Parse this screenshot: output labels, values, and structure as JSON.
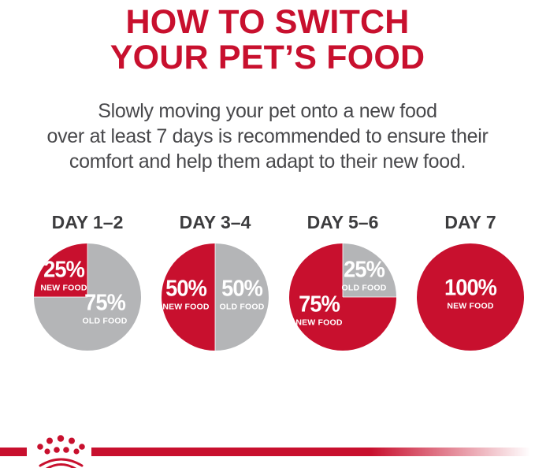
{
  "header": {
    "title_line1": "HOW TO SWITCH",
    "title_line2": "YOUR PET’S FOOD",
    "subtitle_lines": [
      "Slowly moving your pet onto a new food",
      "over at least 7 days is recommended to ensure their",
      "comfort and help them adapt to their new food."
    ]
  },
  "colors": {
    "brand_red": "#C8102E",
    "old_food_gray": "#B4B5B7",
    "heading_text": "#C8102E",
    "body_text": "#48484B",
    "day_label_text": "#3C3C3E",
    "pie_label_text": "#FFFFFF"
  },
  "chart_data": [
    {
      "type": "pie",
      "title": "DAY 1–2",
      "legend_position": "inside",
      "slices": [
        {
          "label": "NEW FOOD",
          "pct_label": "25%",
          "value": 25,
          "color_key": "brand_red"
        },
        {
          "label": "OLD FOOD",
          "pct_label": "75%",
          "value": 75,
          "color_key": "old_food_gray"
        }
      ]
    },
    {
      "type": "pie",
      "title": "DAY 3–4",
      "legend_position": "inside",
      "slices": [
        {
          "label": "NEW FOOD",
          "pct_label": "50%",
          "value": 50,
          "color_key": "brand_red"
        },
        {
          "label": "OLD FOOD",
          "pct_label": "50%",
          "value": 50,
          "color_key": "old_food_gray"
        }
      ]
    },
    {
      "type": "pie",
      "title": "DAY 5–6",
      "legend_position": "inside",
      "slices": [
        {
          "label": "NEW FOOD",
          "pct_label": "75%",
          "value": 75,
          "color_key": "brand_red"
        },
        {
          "label": "OLD FOOD",
          "pct_label": "25%",
          "value": 25,
          "color_key": "old_food_gray"
        }
      ]
    },
    {
      "type": "pie",
      "title": "DAY 7",
      "legend_position": "inside",
      "slices": [
        {
          "label": "NEW FOOD",
          "pct_label": "100%",
          "value": 100,
          "color_key": "brand_red"
        }
      ]
    }
  ],
  "footer": {
    "logo": "royal-canin-crown"
  }
}
